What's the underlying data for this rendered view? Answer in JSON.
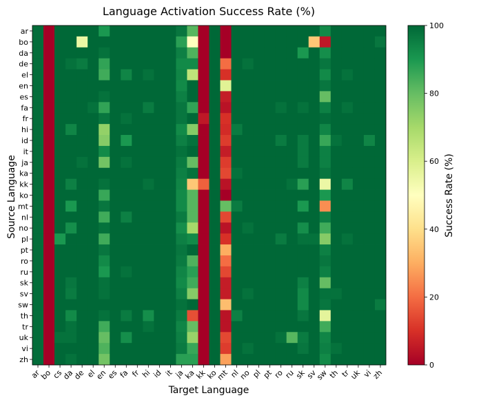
{
  "chart_data": {
    "type": "heatmap",
    "title": "Language Activation Success Rate (%)",
    "xlabel": "Target Language",
    "ylabel": "Source Language",
    "colorbar_label": "Success Rate (%)",
    "colorbar_ticks": [
      0,
      20,
      40,
      60,
      80,
      100
    ],
    "value_range": [
      0,
      100
    ],
    "colormap": "RdYlGn",
    "x_categories": [
      "ar",
      "bo",
      "cs",
      "da",
      "de",
      "el",
      "en",
      "es",
      "fa",
      "fr",
      "hi",
      "id",
      "it",
      "ja",
      "ka",
      "kk",
      "ko",
      "mt",
      "nl",
      "no",
      "pl",
      "pt",
      "ro",
      "ru",
      "sk",
      "sv",
      "sw",
      "th",
      "tr",
      "uk",
      "vi",
      "zh"
    ],
    "y_categories": [
      "ar",
      "bo",
      "da",
      "de",
      "el",
      "en",
      "es",
      "fa",
      "fr",
      "hi",
      "id",
      "it",
      "ja",
      "ka",
      "kk",
      "ko",
      "mt",
      "nl",
      "no",
      "pl",
      "pt",
      "ro",
      "ru",
      "sk",
      "sv",
      "sw",
      "th",
      "tr",
      "uk",
      "vi",
      "zh"
    ],
    "matrix": [
      [
        99,
        0,
        100,
        100,
        100,
        100,
        90,
        100,
        100,
        100,
        100,
        100,
        100,
        97,
        82,
        0,
        100,
        0,
        100,
        100,
        100,
        100,
        100,
        100,
        100,
        100,
        93,
        100,
        100,
        100,
        100,
        100
      ],
      [
        99,
        0,
        100,
        100,
        55,
        100,
        100,
        100,
        100,
        100,
        100,
        100,
        100,
        88,
        50,
        0,
        100,
        0,
        100,
        100,
        100,
        100,
        100,
        100,
        100,
        35,
        5,
        100,
        100,
        100,
        100,
        97
      ],
      [
        99,
        0,
        100,
        100,
        100,
        100,
        98,
        100,
        100,
        100,
        100,
        100,
        100,
        95,
        83,
        0,
        100,
        0,
        100,
        100,
        100,
        100,
        100,
        100,
        90,
        100,
        92,
        100,
        100,
        100,
        100,
        100
      ],
      [
        99,
        0,
        100,
        98,
        96,
        100,
        87,
        100,
        100,
        100,
        100,
        100,
        100,
        93,
        93,
        0,
        100,
        20,
        100,
        98,
        100,
        100,
        100,
        100,
        100,
        100,
        97,
        100,
        100,
        100,
        100,
        100
      ],
      [
        99,
        0,
        100,
        100,
        100,
        100,
        85,
        100,
        94,
        100,
        98,
        100,
        100,
        94,
        65,
        0,
        100,
        10,
        100,
        100,
        100,
        100,
        100,
        100,
        100,
        100,
        93,
        100,
        98,
        100,
        100,
        100
      ],
      [
        99,
        0,
        100,
        100,
        100,
        100,
        100,
        100,
        100,
        100,
        100,
        100,
        100,
        93,
        100,
        0,
        100,
        58,
        100,
        100,
        100,
        100,
        100,
        100,
        100,
        100,
        97,
        100,
        100,
        100,
        100,
        100
      ],
      [
        99,
        0,
        100,
        100,
        100,
        100,
        98,
        100,
        100,
        100,
        100,
        100,
        100,
        95,
        100,
        0,
        100,
        6,
        100,
        100,
        100,
        100,
        100,
        100,
        100,
        100,
        80,
        100,
        100,
        100,
        100,
        100
      ],
      [
        99,
        0,
        100,
        100,
        100,
        98,
        87,
        100,
        100,
        100,
        96,
        100,
        100,
        97,
        87,
        0,
        100,
        4,
        100,
        100,
        100,
        100,
        98,
        100,
        98,
        100,
        95,
        100,
        98,
        100,
        100,
        100
      ],
      [
        99,
        0,
        100,
        100,
        100,
        100,
        97,
        100,
        98,
        100,
        100,
        100,
        100,
        97,
        100,
        5,
        100,
        10,
        100,
        100,
        100,
        100,
        100,
        100,
        100,
        100,
        99,
        100,
        100,
        100,
        100,
        100
      ],
      [
        99,
        0,
        100,
        94,
        100,
        100,
        73,
        100,
        100,
        100,
        100,
        100,
        100,
        93,
        75,
        0,
        100,
        9,
        96,
        100,
        100,
        100,
        100,
        100,
        100,
        100,
        94,
        100,
        100,
        100,
        100,
        100
      ],
      [
        99,
        0,
        100,
        100,
        100,
        100,
        75,
        100,
        90,
        100,
        100,
        100,
        100,
        95,
        98,
        0,
        100,
        12,
        100,
        100,
        100,
        100,
        96,
        100,
        96,
        100,
        86,
        98,
        100,
        100,
        94,
        100
      ],
      [
        99,
        0,
        100,
        100,
        100,
        100,
        93,
        100,
        100,
        100,
        100,
        100,
        100,
        98,
        100,
        0,
        100,
        6,
        100,
        100,
        100,
        100,
        100,
        100,
        96,
        100,
        95,
        100,
        100,
        100,
        100,
        100
      ],
      [
        99,
        0,
        100,
        100,
        98,
        100,
        78,
        100,
        98,
        100,
        100,
        100,
        100,
        96,
        80,
        0,
        100,
        12,
        100,
        100,
        100,
        100,
        100,
        100,
        96,
        100,
        95,
        100,
        100,
        100,
        100,
        100
      ],
      [
        99,
        0,
        100,
        100,
        100,
        100,
        100,
        100,
        100,
        100,
        100,
        100,
        100,
        95,
        98,
        0,
        100,
        14,
        98,
        100,
        100,
        100,
        100,
        100,
        100,
        100,
        97,
        100,
        100,
        100,
        100,
        100
      ],
      [
        99,
        0,
        100,
        95,
        100,
        100,
        98,
        100,
        100,
        100,
        98,
        100,
        100,
        94,
        35,
        18,
        100,
        4,
        100,
        100,
        100,
        100,
        100,
        98,
        88,
        100,
        55,
        100,
        94,
        100,
        100,
        100
      ],
      [
        99,
        0,
        100,
        100,
        100,
        100,
        86,
        100,
        100,
        100,
        100,
        100,
        100,
        93,
        82,
        0,
        100,
        0,
        100,
        100,
        100,
        100,
        100,
        100,
        100,
        100,
        90,
        100,
        100,
        100,
        100,
        100
      ],
      [
        99,
        0,
        100,
        90,
        100,
        100,
        97,
        100,
        100,
        100,
        100,
        100,
        100,
        93,
        82,
        0,
        100,
        80,
        96,
        100,
        100,
        100,
        100,
        100,
        90,
        100,
        25,
        100,
        100,
        100,
        100,
        100
      ],
      [
        99,
        0,
        100,
        100,
        100,
        100,
        85,
        100,
        95,
        100,
        100,
        100,
        100,
        96,
        82,
        0,
        100,
        14,
        100,
        100,
        100,
        100,
        100,
        100,
        100,
        100,
        95,
        100,
        100,
        100,
        100,
        100
      ],
      [
        99,
        0,
        100,
        92,
        100,
        100,
        98,
        100,
        100,
        100,
        100,
        100,
        100,
        92,
        70,
        0,
        100,
        4,
        100,
        98,
        100,
        100,
        100,
        100,
        92,
        100,
        85,
        100,
        100,
        100,
        100,
        100
      ],
      [
        99,
        0,
        90,
        100,
        100,
        100,
        85,
        100,
        100,
        100,
        100,
        100,
        100,
        95,
        93,
        0,
        100,
        10,
        100,
        100,
        100,
        100,
        96,
        100,
        98,
        98,
        75,
        100,
        98,
        100,
        100,
        100
      ],
      [
        99,
        0,
        100,
        100,
        100,
        100,
        97,
        100,
        100,
        100,
        100,
        100,
        100,
        97,
        100,
        0,
        100,
        30,
        100,
        100,
        100,
        100,
        100,
        100,
        100,
        100,
        95,
        100,
        100,
        100,
        100,
        100
      ],
      [
        99,
        0,
        100,
        100,
        100,
        100,
        93,
        100,
        100,
        100,
        100,
        100,
        100,
        96,
        83,
        0,
        100,
        20,
        100,
        100,
        100,
        100,
        100,
        100,
        100,
        100,
        97,
        100,
        100,
        100,
        100,
        100
      ],
      [
        99,
        0,
        100,
        100,
        100,
        100,
        90,
        100,
        98,
        100,
        100,
        100,
        100,
        94,
        88,
        0,
        100,
        14,
        100,
        100,
        100,
        100,
        100,
        100,
        100,
        100,
        95,
        100,
        100,
        100,
        100,
        100
      ],
      [
        99,
        0,
        100,
        97,
        100,
        100,
        98,
        100,
        100,
        100,
        100,
        100,
        100,
        93,
        85,
        0,
        100,
        6,
        100,
        100,
        100,
        100,
        100,
        100,
        95,
        100,
        80,
        100,
        100,
        100,
        100,
        100
      ],
      [
        99,
        0,
        100,
        96,
        100,
        100,
        98,
        100,
        100,
        100,
        100,
        100,
        100,
        95,
        75,
        0,
        100,
        6,
        100,
        98,
        100,
        100,
        100,
        100,
        93,
        100,
        98,
        98,
        100,
        100,
        100,
        100
      ],
      [
        99,
        0,
        100,
        100,
        100,
        100,
        100,
        100,
        100,
        100,
        100,
        100,
        100,
        98,
        100,
        0,
        100,
        33,
        100,
        100,
        100,
        100,
        100,
        100,
        93,
        100,
        97,
        100,
        100,
        100,
        100,
        96
      ],
      [
        99,
        0,
        100,
        93,
        100,
        100,
        98,
        100,
        96,
        100,
        92,
        100,
        100,
        96,
        15,
        0,
        100,
        4,
        95,
        100,
        100,
        100,
        100,
        100,
        97,
        100,
        57,
        100,
        100,
        100,
        100,
        100
      ],
      [
        99,
        0,
        100,
        98,
        100,
        100,
        85,
        100,
        100,
        100,
        98,
        100,
        100,
        94,
        80,
        0,
        100,
        4,
        100,
        100,
        100,
        100,
        100,
        100,
        100,
        100,
        85,
        100,
        100,
        100,
        100,
        100
      ],
      [
        99,
        0,
        98,
        98,
        100,
        100,
        80,
        100,
        92,
        100,
        100,
        100,
        100,
        95,
        72,
        0,
        100,
        14,
        100,
        100,
        100,
        100,
        98,
        82,
        96,
        100,
        94,
        100,
        100,
        100,
        100,
        100
      ],
      [
        99,
        0,
        100,
        100,
        100,
        100,
        83,
        100,
        100,
        100,
        100,
        100,
        100,
        96,
        86,
        0,
        100,
        12,
        100,
        98,
        100,
        100,
        100,
        100,
        97,
        100,
        95,
        98,
        100,
        100,
        100,
        100
      ],
      [
        99,
        0,
        100,
        98,
        100,
        100,
        78,
        100,
        100,
        100,
        100,
        100,
        100,
        88,
        88,
        0,
        100,
        28,
        100,
        100,
        100,
        100,
        100,
        100,
        100,
        100,
        93,
        100,
        100,
        100,
        100,
        100
      ]
    ]
  }
}
